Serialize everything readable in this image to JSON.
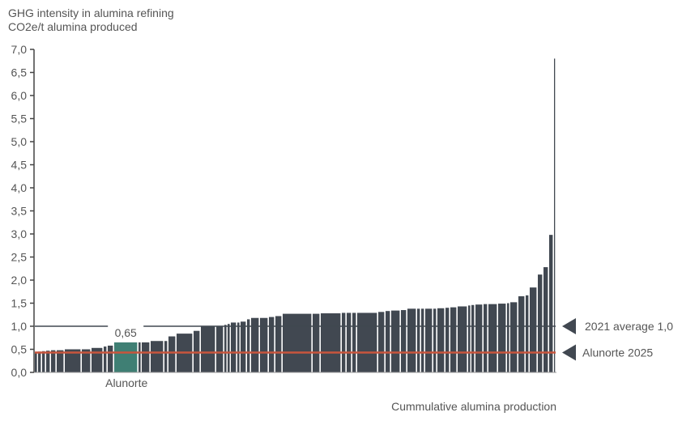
{
  "chart_data": {
    "type": "bar",
    "variant": "variable-width cost curve",
    "title": "GHG intensity in alumina refining",
    "ylabel": "CO2e/t alumina produced",
    "xlabel": "Cummulative  alumina  production",
    "ylim": [
      0,
      7
    ],
    "yticks": [
      "0,0",
      "0,5",
      "1,0",
      "1,5",
      "2,0",
      "2,5",
      "3,0",
      "3,5",
      "4,0",
      "4,5",
      "5,0",
      "5,5",
      "6,0",
      "6,5",
      "7,0"
    ],
    "grid": false,
    "bar_color": "#414851",
    "highlight_color": "#3f7f74",
    "highlight": {
      "index": 11,
      "label": "Alunorte",
      "value_label": "0,65",
      "value": 0.65
    },
    "bars": {
      "widths": [
        4,
        5,
        5,
        6,
        7,
        10,
        21,
        12,
        15,
        5,
        8,
        30,
        4,
        11,
        17,
        5,
        10,
        21,
        9,
        19,
        10,
        4,
        4,
        8,
        4,
        8,
        5,
        11,
        11,
        8,
        9,
        37,
        10,
        26,
        6,
        7,
        6,
        26,
        9,
        7,
        12,
        8,
        12,
        5,
        5,
        10,
        5,
        10,
        6,
        9,
        13,
        4,
        5,
        10,
        6,
        12,
        11,
        4,
        10,
        9,
        5,
        10,
        7,
        7,
        6,
        2
      ],
      "values": [
        0.43,
        0.45,
        0.46,
        0.47,
        0.48,
        0.48,
        0.5,
        0.5,
        0.53,
        0.56,
        0.58,
        0.65,
        0.65,
        0.65,
        0.68,
        0.68,
        0.78,
        0.84,
        0.9,
        1.0,
        1.0,
        1.03,
        1.05,
        1.08,
        1.08,
        1.1,
        1.15,
        1.18,
        1.18,
        1.2,
        1.22,
        1.27,
        1.27,
        1.28,
        1.29,
        1.29,
        1.29,
        1.29,
        1.31,
        1.33,
        1.34,
        1.35,
        1.38,
        1.38,
        1.38,
        1.38,
        1.38,
        1.39,
        1.4,
        1.41,
        1.43,
        1.45,
        1.46,
        1.47,
        1.48,
        1.48,
        1.49,
        1.5,
        1.52,
        1.65,
        1.67,
        1.84,
        2.12,
        2.28,
        2.98,
        6.8
      ]
    },
    "reference_lines": [
      {
        "label": "2021 average 1,0",
        "value": 1.0,
        "color": "#414851"
      },
      {
        "label": "Alunorte 2025",
        "value": 0.43,
        "color": "#c8553d"
      }
    ]
  }
}
